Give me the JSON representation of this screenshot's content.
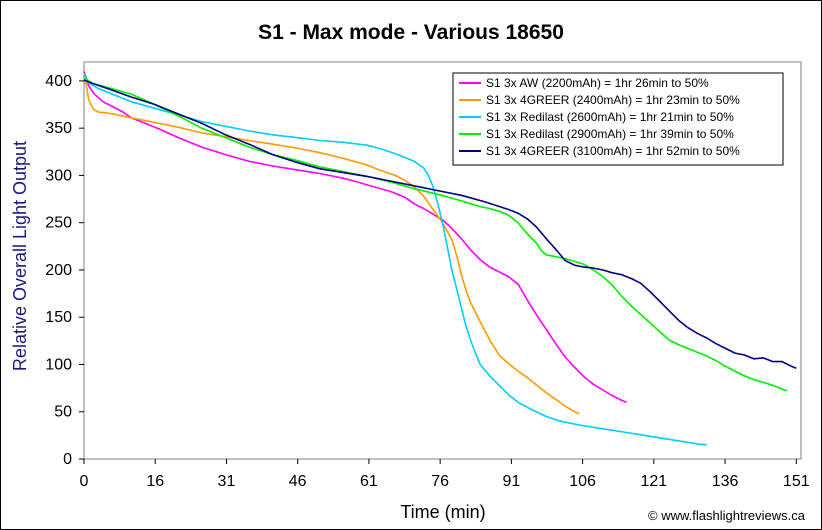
{
  "credit": "© www.flashlightreviews.ca",
  "chart_data": {
    "type": "line",
    "title": "S1 - Max mode - Various 18650",
    "xlabel": "Time (min)",
    "ylabel": "Relative Overall Light Output",
    "xlim": [
      0,
      152
    ],
    "ylim": [
      0,
      420
    ],
    "x_ticks": [
      "0",
      "16",
      "31",
      "46",
      "61",
      "76",
      "91",
      "106",
      "121",
      "136",
      "151"
    ],
    "x_tick_values": [
      0,
      15.1,
      30.2,
      45.3,
      60.4,
      75.5,
      90.6,
      105.7,
      120.8,
      135.9,
      151
    ],
    "y_ticks": [
      "0",
      "50",
      "100",
      "150",
      "200",
      "250",
      "300",
      "350",
      "400"
    ],
    "y_tick_values": [
      0,
      50,
      100,
      150,
      200,
      250,
      300,
      350,
      400
    ],
    "grid": false,
    "legend_position": "top-right",
    "series": [
      {
        "name": "S1 3x AW (2200mAh) = 1hr 26min to 50%",
        "color": "#ff00ff",
        "points": [
          [
            0,
            410
          ],
          [
            1,
            395
          ],
          [
            2,
            387
          ],
          [
            4,
            378
          ],
          [
            6,
            373
          ],
          [
            8,
            368
          ],
          [
            10,
            361
          ],
          [
            13,
            355
          ],
          [
            16,
            349
          ],
          [
            20,
            340
          ],
          [
            25,
            330
          ],
          [
            30,
            322
          ],
          [
            35,
            315
          ],
          [
            40,
            310
          ],
          [
            45,
            306
          ],
          [
            50,
            302
          ],
          [
            55,
            297
          ],
          [
            58,
            293
          ],
          [
            60,
            290
          ],
          [
            65,
            283
          ],
          [
            68,
            277
          ],
          [
            70,
            270
          ],
          [
            72,
            265
          ],
          [
            74,
            259
          ],
          [
            76,
            253
          ],
          [
            78,
            244
          ],
          [
            80,
            233
          ],
          [
            82,
            221
          ],
          [
            84,
            211
          ],
          [
            86,
            203
          ],
          [
            88,
            198
          ],
          [
            90,
            193
          ],
          [
            92,
            185
          ],
          [
            94,
            168
          ],
          [
            96,
            152
          ],
          [
            98,
            137
          ],
          [
            100,
            122
          ],
          [
            102,
            108
          ],
          [
            104,
            97
          ],
          [
            106,
            87
          ],
          [
            108,
            79
          ],
          [
            110,
            73
          ],
          [
            112,
            67
          ],
          [
            114,
            62
          ],
          [
            115,
            60
          ]
        ]
      },
      {
        "name": "S1 3x 4GREER (2400mAh) = 1hr 23min to 50%",
        "color": "#ff9900",
        "points": [
          [
            0,
            405
          ],
          [
            0.5,
            395
          ],
          [
            1,
            380
          ],
          [
            2,
            370
          ],
          [
            3,
            367
          ],
          [
            5,
            366
          ],
          [
            7,
            364
          ],
          [
            9,
            362
          ],
          [
            12,
            359
          ],
          [
            15,
            356
          ],
          [
            20,
            351
          ],
          [
            25,
            345
          ],
          [
            30,
            341
          ],
          [
            35,
            337
          ],
          [
            40,
            333
          ],
          [
            45,
            329
          ],
          [
            50,
            324
          ],
          [
            55,
            318
          ],
          [
            60,
            311
          ],
          [
            63,
            305
          ],
          [
            66,
            300
          ],
          [
            68,
            295
          ],
          [
            70,
            288
          ],
          [
            72,
            278
          ],
          [
            74,
            264
          ],
          [
            76,
            250
          ],
          [
            78,
            232
          ],
          [
            79,
            215
          ],
          [
            80,
            195
          ],
          [
            81,
            178
          ],
          [
            82,
            165
          ],
          [
            84,
            145
          ],
          [
            86,
            126
          ],
          [
            88,
            110
          ],
          [
            90,
            101
          ],
          [
            92,
            93
          ],
          [
            94,
            86
          ],
          [
            96,
            78
          ],
          [
            98,
            70
          ],
          [
            100,
            63
          ],
          [
            102,
            56
          ],
          [
            104,
            50
          ],
          [
            105,
            48
          ]
        ]
      },
      {
        "name": "S1 3x Redilast (2600mAh) = 1hr 21min to 50%",
        "color": "#00ccff",
        "points": [
          [
            0,
            408
          ],
          [
            1,
            398
          ],
          [
            3,
            392
          ],
          [
            6,
            386
          ],
          [
            10,
            378
          ],
          [
            15,
            371
          ],
          [
            20,
            364
          ],
          [
            25,
            357
          ],
          [
            30,
            352
          ],
          [
            35,
            347
          ],
          [
            40,
            343
          ],
          [
            45,
            340
          ],
          [
            50,
            337
          ],
          [
            55,
            335
          ],
          [
            60,
            332
          ],
          [
            63,
            328
          ],
          [
            66,
            323
          ],
          [
            68,
            319
          ],
          [
            70,
            315
          ],
          [
            72,
            308
          ],
          [
            73,
            300
          ],
          [
            74,
            288
          ],
          [
            75,
            270
          ],
          [
            76,
            250
          ],
          [
            77,
            225
          ],
          [
            78,
            200
          ],
          [
            79,
            180
          ],
          [
            80,
            160
          ],
          [
            81,
            140
          ],
          [
            82,
            125
          ],
          [
            83,
            112
          ],
          [
            84,
            100
          ],
          [
            86,
            88
          ],
          [
            88,
            78
          ],
          [
            90,
            68
          ],
          [
            92,
            60
          ],
          [
            95,
            52
          ],
          [
            98,
            45
          ],
          [
            101,
            40
          ],
          [
            105,
            36
          ],
          [
            110,
            32
          ],
          [
            115,
            28
          ],
          [
            120,
            24
          ],
          [
            125,
            20
          ],
          [
            130,
            16
          ],
          [
            132,
            15
          ]
        ]
      },
      {
        "name": "S1 3x Redilast (2900mAh) = 1hr 39min to 50%",
        "color": "#00ee00",
        "points": [
          [
            0,
            403
          ],
          [
            2,
            397
          ],
          [
            5,
            393
          ],
          [
            10,
            386
          ],
          [
            15,
            375
          ],
          [
            20,
            363
          ],
          [
            25,
            350
          ],
          [
            30,
            340
          ],
          [
            35,
            330
          ],
          [
            40,
            322
          ],
          [
            45,
            316
          ],
          [
            50,
            309
          ],
          [
            55,
            304
          ],
          [
            60,
            299
          ],
          [
            65,
            293
          ],
          [
            70,
            286
          ],
          [
            75,
            280
          ],
          [
            80,
            273
          ],
          [
            84,
            267
          ],
          [
            86,
            265
          ],
          [
            88,
            262
          ],
          [
            90,
            258
          ],
          [
            92,
            250
          ],
          [
            94,
            238
          ],
          [
            96,
            228
          ],
          [
            97,
            220
          ],
          [
            98,
            216
          ],
          [
            100,
            214
          ],
          [
            102,
            212
          ],
          [
            104,
            209
          ],
          [
            106,
            206
          ],
          [
            108,
            200
          ],
          [
            110,
            193
          ],
          [
            112,
            184
          ],
          [
            114,
            172
          ],
          [
            116,
            162
          ],
          [
            118,
            153
          ],
          [
            120,
            144
          ],
          [
            122,
            135
          ],
          [
            124,
            126
          ],
          [
            126,
            121
          ],
          [
            128,
            117
          ],
          [
            130,
            113
          ],
          [
            132,
            109
          ],
          [
            134,
            104
          ],
          [
            136,
            98
          ],
          [
            138,
            93
          ],
          [
            140,
            88
          ],
          [
            142,
            84
          ],
          [
            144,
            81
          ],
          [
            146,
            78
          ],
          [
            148,
            74
          ],
          [
            149,
            72
          ]
        ]
      },
      {
        "name": "S1 3x 4GREER (3100mAh) = 1hr 52min to 50%",
        "color": "#000080",
        "points": [
          [
            0,
            401
          ],
          [
            2,
            397
          ],
          [
            5,
            392
          ],
          [
            10,
            383
          ],
          [
            15,
            375
          ],
          [
            20,
            365
          ],
          [
            25,
            355
          ],
          [
            30,
            343
          ],
          [
            35,
            333
          ],
          [
            40,
            322
          ],
          [
            45,
            314
          ],
          [
            50,
            307
          ],
          [
            55,
            303
          ],
          [
            60,
            299
          ],
          [
            65,
            294
          ],
          [
            70,
            289
          ],
          [
            75,
            284
          ],
          [
            80,
            279
          ],
          [
            85,
            272
          ],
          [
            90,
            264
          ],
          [
            92,
            260
          ],
          [
            94,
            254
          ],
          [
            96,
            245
          ],
          [
            98,
            233
          ],
          [
            100,
            222
          ],
          [
            102,
            210
          ],
          [
            104,
            205
          ],
          [
            106,
            203
          ],
          [
            108,
            202
          ],
          [
            110,
            200
          ],
          [
            112,
            197
          ],
          [
            114,
            195
          ],
          [
            116,
            191
          ],
          [
            118,
            186
          ],
          [
            120,
            177
          ],
          [
            122,
            167
          ],
          [
            124,
            157
          ],
          [
            126,
            147
          ],
          [
            128,
            139
          ],
          [
            130,
            133
          ],
          [
            132,
            128
          ],
          [
            134,
            122
          ],
          [
            136,
            117
          ],
          [
            138,
            112
          ],
          [
            140,
            110
          ],
          [
            142,
            106
          ],
          [
            144,
            107
          ],
          [
            146,
            103
          ],
          [
            148,
            103
          ],
          [
            150,
            98
          ],
          [
            151,
            96
          ]
        ]
      }
    ]
  }
}
